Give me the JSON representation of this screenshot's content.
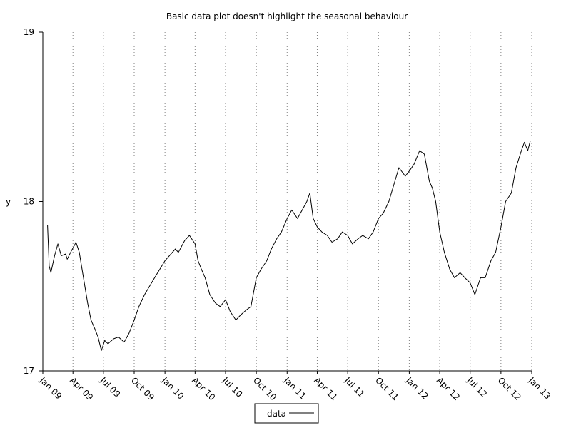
{
  "chart_data": {
    "type": "line",
    "title": "Basic data plot doesn't highlight the seasonal behaviour",
    "xlabel": "",
    "ylabel": "y",
    "ylim": [
      17,
      19
    ],
    "yticks": [
      "17",
      "18",
      "19"
    ],
    "xticks": [
      "Jan 09",
      "Apr 09",
      "Jul 09",
      "Oct 09",
      "Jan 10",
      "Apr 10",
      "Jul 10",
      "Oct 10",
      "Jan 11",
      "Apr 11",
      "Jul 11",
      "Oct 11",
      "Jan 12",
      "Apr 12",
      "Jul 12",
      "Oct 12",
      "Jan 13"
    ],
    "grid": "vertical dotted",
    "legend": "bottom-center",
    "series": [
      {
        "name": "data",
        "color": "#000000",
        "x": [
          "2009-01-15",
          "2009-01-20",
          "2009-01-25",
          "2009-02-05",
          "2009-02-15",
          "2009-02-25",
          "2009-03-10",
          "2009-03-15",
          "2009-03-25",
          "2009-04-05",
          "2009-04-10",
          "2009-04-20",
          "2009-04-25",
          "2009-05-05",
          "2009-05-15",
          "2009-05-25",
          "2009-06-05",
          "2009-06-15",
          "2009-06-25",
          "2009-07-05",
          "2009-07-15",
          "2009-07-20",
          "2009-08-01",
          "2009-08-15",
          "2009-09-01",
          "2009-09-15",
          "2009-10-01",
          "2009-10-15",
          "2009-11-01",
          "2009-12-01",
          "2010-01-01",
          "2010-02-01",
          "2010-02-10",
          "2010-03-01",
          "2010-03-15",
          "2010-04-01",
          "2010-04-10",
          "2010-04-20",
          "2010-05-01",
          "2010-05-15",
          "2010-06-01",
          "2010-06-15",
          "2010-07-01",
          "2010-07-15",
          "2010-08-01",
          "2010-08-15",
          "2010-09-01",
          "2010-09-15",
          "2010-10-01",
          "2010-10-15",
          "2010-11-01",
          "2010-11-15",
          "2010-12-01",
          "2010-12-15",
          "2011-01-01",
          "2011-01-15",
          "2011-02-01",
          "2011-02-15",
          "2011-03-01",
          "2011-03-10",
          "2011-03-20",
          "2011-04-01",
          "2011-04-15",
          "2011-05-01",
          "2011-05-15",
          "2011-06-01",
          "2011-06-15",
          "2011-07-01",
          "2011-07-15",
          "2011-08-01",
          "2011-08-15",
          "2011-09-01",
          "2011-09-15",
          "2011-10-01",
          "2011-10-15",
          "2011-11-01",
          "2011-12-01",
          "2011-12-20",
          "2012-01-01",
          "2012-01-15",
          "2012-02-01",
          "2012-02-15",
          "2012-03-01",
          "2012-03-10",
          "2012-03-20",
          "2012-04-01",
          "2012-04-15",
          "2012-05-01",
          "2012-05-15",
          "2012-06-01",
          "2012-06-15",
          "2012-07-01",
          "2012-07-15",
          "2012-08-01",
          "2012-08-15",
          "2012-09-01",
          "2012-09-15",
          "2012-10-01",
          "2012-10-15",
          "2012-11-01",
          "2012-11-15",
          "2012-12-01",
          "2012-12-10",
          "2012-12-20",
          "2012-12-28"
        ],
        "y": [
          17.86,
          17.62,
          17.58,
          17.68,
          17.75,
          17.68,
          17.69,
          17.66,
          17.7,
          17.74,
          17.76,
          17.7,
          17.64,
          17.52,
          17.4,
          17.3,
          17.25,
          17.2,
          17.12,
          17.18,
          17.16,
          17.17,
          17.19,
          17.2,
          17.17,
          17.22,
          17.3,
          17.38,
          17.45,
          17.55,
          17.65,
          17.72,
          17.7,
          17.77,
          17.8,
          17.75,
          17.65,
          17.6,
          17.55,
          17.45,
          17.4,
          17.38,
          17.42,
          17.35,
          17.3,
          17.33,
          17.36,
          17.38,
          17.55,
          17.6,
          17.65,
          17.72,
          17.78,
          17.82,
          17.9,
          17.95,
          17.9,
          17.95,
          18.0,
          18.05,
          17.9,
          17.85,
          17.82,
          17.8,
          17.76,
          17.78,
          17.82,
          17.8,
          17.75,
          17.78,
          17.8,
          17.78,
          17.82,
          17.9,
          17.93,
          18.0,
          18.2,
          18.15,
          18.18,
          18.22,
          18.3,
          18.28,
          18.12,
          18.08,
          18.0,
          17.82,
          17.7,
          17.6,
          17.55,
          17.58,
          17.55,
          17.52,
          17.45,
          17.55,
          17.55,
          17.65,
          17.7,
          17.85,
          18.0,
          18.05,
          18.2,
          18.3,
          18.35,
          18.3,
          18.36
        ]
      }
    ]
  }
}
